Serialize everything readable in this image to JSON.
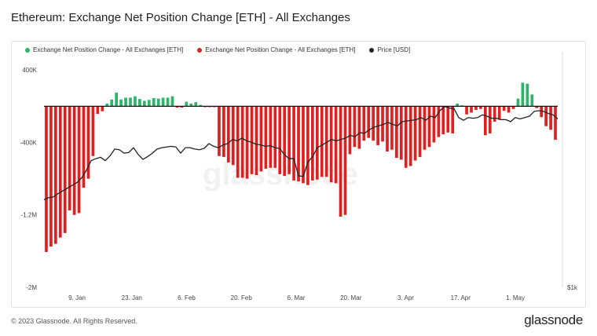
{
  "title": "Ethereum: Exchange Net Position Change [ETH] - All Exchanges",
  "footer": {
    "copyright": "© 2023 Glassnode. All Rights Reserved.",
    "logo": "glassnode",
    "watermark": "glassnode"
  },
  "legend": [
    {
      "label": "Exchange Net Position Change - All Exchanges [ETH]",
      "color": "#2db36a"
    },
    {
      "label": "Exchange Net Position Change - All Exchanges [ETH]",
      "color": "#e02020"
    },
    {
      "label": "Price [USD]",
      "color": "#222222"
    }
  ],
  "chart_data": {
    "type": "bar",
    "y_left_ticks": [
      {
        "label": "400K",
        "value": 400000
      },
      {
        "label": "-400K",
        "value": -400000
      },
      {
        "label": "-1.2M",
        "value": -1200000
      },
      {
        "label": "-2M",
        "value": -2000000
      }
    ],
    "y_right_label": "$1k",
    "x_ticks": [
      "9. Jan",
      "23. Jan",
      "6. Feb",
      "20. Feb",
      "6. Mar",
      "20. Mar",
      "3. Apr",
      "17. Apr",
      "1. May"
    ],
    "ylim": [
      -2000000,
      480000
    ],
    "net_position_change": [
      -1610000,
      -1550000,
      -1520000,
      -1450000,
      -1400000,
      -1150000,
      -1200000,
      -1180000,
      -900000,
      -800000,
      -550000,
      -85000,
      -55000,
      30000,
      75000,
      150000,
      75000,
      95000,
      95000,
      110000,
      80000,
      60000,
      70000,
      90000,
      85000,
      95000,
      95000,
      110000,
      -15000,
      -15000,
      50000,
      30000,
      45000,
      15000,
      -10000,
      -10000,
      -10000,
      -550000,
      -560000,
      -620000,
      -650000,
      -790000,
      -790000,
      -800000,
      -750000,
      -760000,
      -720000,
      -690000,
      -680000,
      -680000,
      -750000,
      -770000,
      -750000,
      -820000,
      -830000,
      -850000,
      -870000,
      -820000,
      -810000,
      -780000,
      -780000,
      -840000,
      -850000,
      -1220000,
      -1200000,
      -530000,
      -450000,
      -470000,
      -380000,
      -350000,
      -380000,
      -430000,
      -390000,
      -500000,
      -480000,
      -570000,
      -590000,
      -680000,
      -660000,
      -600000,
      -560000,
      -480000,
      -450000,
      -400000,
      -340000,
      -310000,
      -290000,
      -300000,
      30000,
      10000,
      -90000,
      -70000,
      -40000,
      -30000,
      -320000,
      -300000,
      -170000,
      -150000,
      -50000,
      -70000,
      -30000,
      85000,
      260000,
      250000,
      130000,
      -20000,
      -120000,
      -220000,
      -260000,
      -370000
    ],
    "price_usd": [
      1260,
      1275,
      1280,
      1305,
      1325,
      1345,
      1365,
      1385,
      1420,
      1475,
      1545,
      1560,
      1570,
      1545,
      1580,
      1630,
      1625,
      1600,
      1605,
      1640,
      1590,
      1555,
      1575,
      1600,
      1630,
      1640,
      1645,
      1650,
      1645,
      1600,
      1640,
      1640,
      1630,
      1625,
      1635,
      1670,
      1650,
      1640,
      1660,
      1670,
      1700,
      1690,
      1710,
      1690,
      1680,
      1665,
      1660,
      1650,
      1655,
      1640,
      1635,
      1590,
      1560,
      1560,
      1435,
      1430,
      1535,
      1575,
      1640,
      1660,
      1680,
      1700,
      1690,
      1700,
      1710,
      1730,
      1720,
      1750,
      1745,
      1770,
      1790,
      1800,
      1810,
      1825,
      1810,
      1800,
      1830,
      1835,
      1840,
      1845,
      1860,
      1840,
      1870,
      1860,
      1910,
      1940,
      1930,
      1925,
      1860,
      1840,
      1860,
      1855,
      1860,
      1880,
      1870,
      1855,
      1855,
      1845,
      1845,
      1830,
      1860,
      1850,
      1860,
      1870,
      1905,
      1910,
      1905,
      1890,
      1880,
      1850
    ],
    "price_ylim": [
      620,
      2260
    ],
    "grid": false,
    "legend_position": "top-left"
  }
}
